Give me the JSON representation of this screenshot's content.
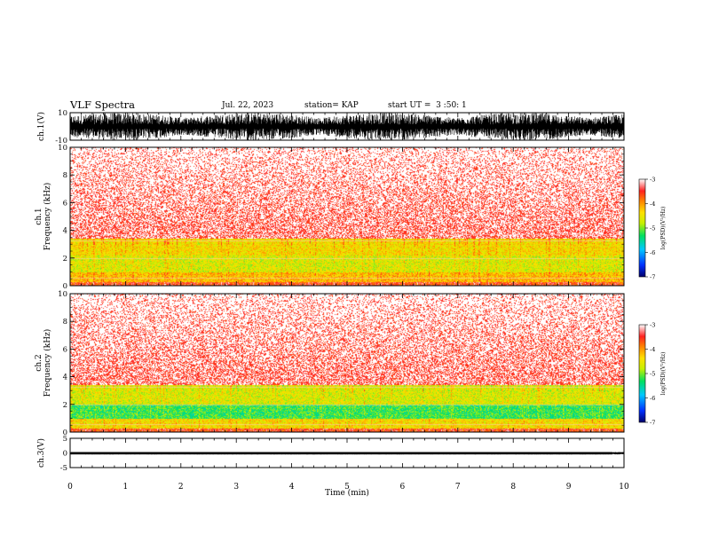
{
  "header": {
    "title": "VLF Spectra",
    "date": "Jul. 22, 2023",
    "station": "station= KAP",
    "start": "start UT =  3 :50: 1"
  },
  "colors": {
    "colormap": [
      "#0000a0",
      "#0044ff",
      "#00c8ff",
      "#00e060",
      "#c8f000",
      "#ffe000",
      "#ff8000",
      "#ff2020",
      "#ffffff"
    ],
    "waveform": "#000000"
  },
  "chart_data": [
    {
      "type": "line",
      "name": "ch1-waveform",
      "ylabel": "ch.1(V)",
      "ylim": [
        -10,
        10
      ],
      "yticks": [
        "10",
        "-10"
      ],
      "xlim": [
        0,
        10
      ],
      "description_values": {
        "envelope_min": -10,
        "envelope_max": 10
      }
    },
    {
      "type": "heatmap",
      "name": "ch1-spectrogram",
      "ylabel": "ch.1\nFrequency (kHz)",
      "ylim": [
        0,
        10
      ],
      "yticks": [
        "0",
        "2",
        "4",
        "6",
        "8",
        "10"
      ],
      "xlim": [
        0,
        10
      ],
      "colorbar": {
        "label": "log(PSD)(V²/Hz)",
        "ticks": [
          "-3",
          "-4",
          "-5",
          "-6",
          "-7"
        ],
        "range": [
          -7,
          -3
        ]
      },
      "bands": [
        {
          "freq": [
            0.3,
            1.0
          ],
          "level": -4.2
        },
        {
          "freq": [
            1.0,
            2.2
          ],
          "level": -4.6
        },
        {
          "freq": [
            2.2,
            3.4
          ],
          "level": -4.4
        },
        {
          "freq": [
            3.4,
            10
          ],
          "level": -3.6
        }
      ]
    },
    {
      "type": "heatmap",
      "name": "ch2-spectrogram",
      "ylabel": "ch.2\nFrequency (kHz)",
      "ylim": [
        0,
        10
      ],
      "yticks": [
        "0",
        "2",
        "4",
        "6",
        "8",
        "10"
      ],
      "xlim": [
        0,
        10
      ],
      "colorbar": {
        "label": "log(PSD)(V²/Hz)",
        "ticks": [
          "-3",
          "-4",
          "-5",
          "-6",
          "-7"
        ],
        "range": [
          -7,
          -3
        ]
      },
      "bands": [
        {
          "freq": [
            0.3,
            1.0
          ],
          "level": -4.4
        },
        {
          "freq": [
            1.0,
            2.0
          ],
          "level": -5.2
        },
        {
          "freq": [
            2.0,
            3.4
          ],
          "level": -4.6
        },
        {
          "freq": [
            3.4,
            10
          ],
          "level": -3.6
        }
      ]
    },
    {
      "type": "line",
      "name": "ch3-waveform",
      "ylabel": "ch.3(V)",
      "ylim": [
        -5,
        5
      ],
      "yticks": [
        "5",
        "0",
        "-5"
      ],
      "xlim": [
        0,
        10
      ],
      "description_values": {
        "envelope_min": -0.5,
        "envelope_max": 0.3
      }
    }
  ],
  "xaxis": {
    "label": "Time (min)",
    "ticks": [
      "0",
      "1",
      "2",
      "3",
      "4",
      "5",
      "6",
      "7",
      "8",
      "9",
      "10"
    ]
  }
}
